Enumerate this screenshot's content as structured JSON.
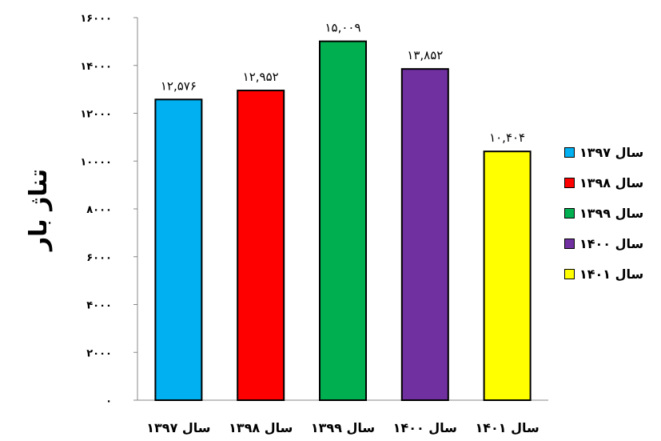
{
  "chart_data": {
    "type": "bar",
    "ylabel": "تناژ بار",
    "ylim": [
      0,
      16000
    ],
    "yticks": [
      0,
      2000,
      4000,
      6000,
      8000,
      10000,
      12000,
      14000,
      16000
    ],
    "ytick_labels": [
      "۰",
      "۲۰۰۰",
      "۴۰۰۰",
      "۶۰۰۰",
      "۸۰۰۰",
      "۱۰۰۰۰",
      "۱۲۰۰۰",
      "۱۴۰۰۰",
      "۱۶۰۰۰"
    ],
    "categories": [
      "سال ۱۳۹۷",
      "سال ۱۳۹۸",
      "سال ۱۳۹۹",
      "سال ۱۴۰۰",
      "سال ۱۴۰۱"
    ],
    "values": [
      12576,
      12952,
      15009,
      13852,
      10404
    ],
    "data_labels": [
      "۱۲,۵۷۶",
      "۱۲,۹۵۲",
      "۱۵,۰۰۹",
      "۱۳,۸۵۲",
      "۱۰,۴۰۴"
    ],
    "colors": [
      "#00b0f0",
      "#ff0000",
      "#00b050",
      "#7030a0",
      "#ffff00"
    ],
    "legend_position": "right",
    "grid": false
  }
}
